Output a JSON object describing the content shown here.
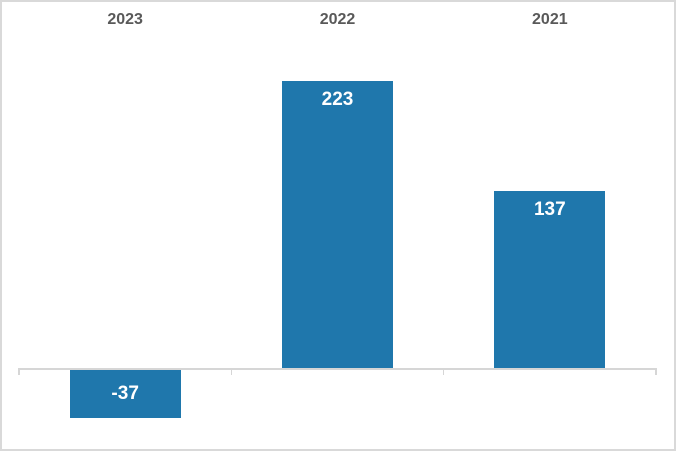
{
  "chart_data": {
    "type": "bar",
    "categories": [
      "2023",
      "2022",
      "2021"
    ],
    "values": [
      -37,
      223,
      137
    ],
    "data_labels": [
      "-37",
      "223",
      "137"
    ],
    "title": "",
    "xlabel": "",
    "ylabel": "",
    "ylim": [
      -63,
      284
    ],
    "legend": "none",
    "gridlines": false,
    "category_axis_position": "top",
    "data_label_position": "inside_end",
    "colors": {
      "bar": "#1F77AC",
      "data_label": "#FFFFFF",
      "category_label": "#595959",
      "axis": "#D6D6D6",
      "border": "#D9D9D9",
      "background": "#FFFFFF"
    }
  }
}
